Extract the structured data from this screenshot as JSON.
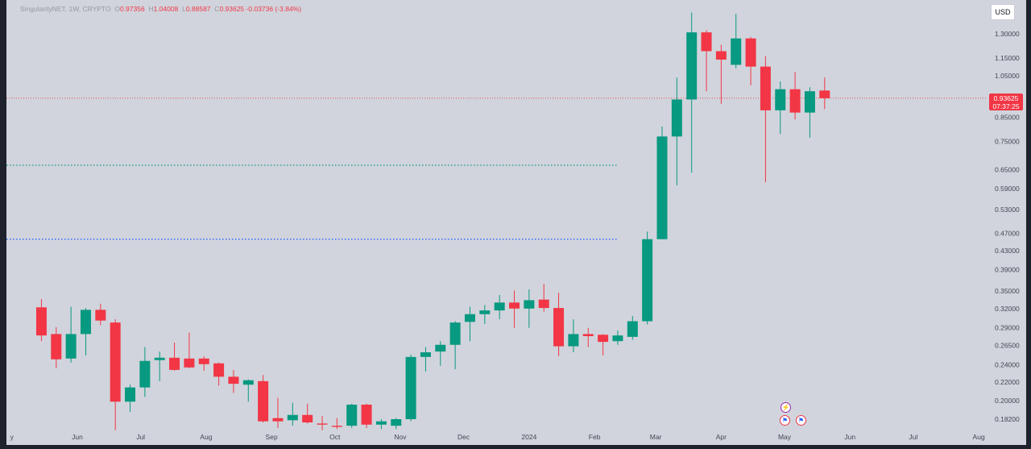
{
  "header": {
    "symbol": "SingularityNET, 1W, CRYPTO",
    "ohlc": [
      {
        "label": "O",
        "value": "0.97356"
      },
      {
        "label": "H",
        "value": "1.04008"
      },
      {
        "label": "L",
        "value": "0.88587"
      },
      {
        "label": "C",
        "value": "0.93625"
      }
    ],
    "change": "-0.03736 (-3.84%)"
  },
  "currency_button": "USD",
  "last_price": {
    "price": "0.93625",
    "countdown": "07:37:25"
  },
  "colors": {
    "up": "#089981",
    "down": "#f23645",
    "background": "#d1d4dc",
    "level_green": "#089981",
    "level_blue": "#2962ff"
  },
  "events": [
    {
      "name": "flash-event",
      "glyph": "⚡"
    },
    {
      "name": "us-flag-event",
      "glyph": "⚑"
    },
    {
      "name": "us-flag-event",
      "glyph": "⚑"
    }
  ],
  "chart_data": {
    "type": "candlestick",
    "y_scale": "log",
    "y_ticks": [
      "1.30000",
      "1.15000",
      "1.05000",
      "0.85000",
      "0.75000",
      "0.65000",
      "0.59000",
      "0.53000",
      "0.47000",
      "0.43000",
      "0.39000",
      "0.35000",
      "0.32000",
      "0.29000",
      "0.26500",
      "0.24000",
      "0.22000",
      "0.20000",
      "0.18200"
    ],
    "x_ticks": [
      {
        "label": "y",
        "date": "2023-05-01"
      },
      {
        "label": "Jun",
        "date": "2023-06-01"
      },
      {
        "label": "Jul",
        "date": "2023-07-01"
      },
      {
        "label": "Aug",
        "date": "2023-08-01"
      },
      {
        "label": "Sep",
        "date": "2023-09-01"
      },
      {
        "label": "Oct",
        "date": "2023-10-01"
      },
      {
        "label": "Nov",
        "date": "2023-11-01"
      },
      {
        "label": "Dec",
        "date": "2023-12-01"
      },
      {
        "label": "2024",
        "date": "2024-01-01"
      },
      {
        "label": "Feb",
        "date": "2024-02-01"
      },
      {
        "label": "Mar",
        "date": "2024-03-01"
      },
      {
        "label": "Apr",
        "date": "2024-04-01"
      },
      {
        "label": "May",
        "date": "2024-05-01"
      },
      {
        "label": "Jun",
        "date": "2024-06-01"
      },
      {
        "label": "Jul",
        "date": "2024-07-01"
      },
      {
        "label": "Aug",
        "date": "2024-08-01"
      }
    ],
    "levels": [
      {
        "price": 0.665,
        "color": "#089981"
      },
      {
        "price": 0.456,
        "color": "#2962ff"
      }
    ],
    "last_price_line": 0.93625,
    "candles": [
      {
        "date": "2023-05-15",
        "o": 0.322,
        "h": 0.336,
        "l": 0.271,
        "c": 0.279
      },
      {
        "date": "2023-05-22",
        "o": 0.281,
        "h": 0.291,
        "l": 0.236,
        "c": 0.247
      },
      {
        "date": "2023-05-29",
        "o": 0.248,
        "h": 0.323,
        "l": 0.243,
        "c": 0.281
      },
      {
        "date": "2023-06-05",
        "o": 0.281,
        "h": 0.321,
        "l": 0.252,
        "c": 0.318
      },
      {
        "date": "2023-06-12",
        "o": 0.318,
        "h": 0.328,
        "l": 0.294,
        "c": 0.301
      },
      {
        "date": "2023-06-19",
        "o": 0.298,
        "h": 0.303,
        "l": 0.172,
        "c": 0.199
      },
      {
        "date": "2023-06-26",
        "o": 0.199,
        "h": 0.217,
        "l": 0.189,
        "c": 0.214
      },
      {
        "date": "2023-07-03",
        "o": 0.214,
        "h": 0.263,
        "l": 0.204,
        "c": 0.245
      },
      {
        "date": "2023-07-10",
        "o": 0.246,
        "h": 0.257,
        "l": 0.221,
        "c": 0.249
      },
      {
        "date": "2023-07-17",
        "o": 0.249,
        "h": 0.269,
        "l": 0.233,
        "c": 0.234
      },
      {
        "date": "2023-07-24",
        "o": 0.248,
        "h": 0.283,
        "l": 0.236,
        "c": 0.237
      },
      {
        "date": "2023-07-31",
        "o": 0.248,
        "h": 0.251,
        "l": 0.233,
        "c": 0.241
      },
      {
        "date": "2023-08-07",
        "o": 0.242,
        "h": 0.243,
        "l": 0.216,
        "c": 0.226
      },
      {
        "date": "2023-08-14",
        "o": 0.226,
        "h": 0.234,
        "l": 0.208,
        "c": 0.218
      },
      {
        "date": "2023-08-21",
        "o": 0.217,
        "h": 0.223,
        "l": 0.199,
        "c": 0.222
      },
      {
        "date": "2023-08-28",
        "o": 0.221,
        "h": 0.228,
        "l": 0.179,
        "c": 0.18
      },
      {
        "date": "2023-09-04",
        "o": 0.183,
        "h": 0.203,
        "l": 0.174,
        "c": 0.18
      },
      {
        "date": "2023-09-11",
        "o": 0.181,
        "h": 0.198,
        "l": 0.176,
        "c": 0.186
      },
      {
        "date": "2023-09-18",
        "o": 0.186,
        "h": 0.197,
        "l": 0.178,
        "c": 0.179
      },
      {
        "date": "2023-09-25",
        "o": 0.178,
        "h": 0.185,
        "l": 0.172,
        "c": 0.177
      },
      {
        "date": "2023-10-02",
        "o": 0.176,
        "h": 0.183,
        "l": 0.173,
        "c": 0.175
      },
      {
        "date": "2023-10-09",
        "o": 0.176,
        "h": 0.197,
        "l": 0.174,
        "c": 0.196
      },
      {
        "date": "2023-10-16",
        "o": 0.196,
        "h": 0.197,
        "l": 0.174,
        "c": 0.177
      },
      {
        "date": "2023-10-23",
        "o": 0.177,
        "h": 0.182,
        "l": 0.173,
        "c": 0.18
      },
      {
        "date": "2023-10-30",
        "o": 0.176,
        "h": 0.183,
        "l": 0.173,
        "c": 0.182
      },
      {
        "date": "2023-11-06",
        "o": 0.182,
        "h": 0.253,
        "l": 0.18,
        "c": 0.25
      },
      {
        "date": "2023-11-13",
        "o": 0.25,
        "h": 0.263,
        "l": 0.232,
        "c": 0.256
      },
      {
        "date": "2023-11-20",
        "o": 0.257,
        "h": 0.271,
        "l": 0.239,
        "c": 0.266
      },
      {
        "date": "2023-11-27",
        "o": 0.266,
        "h": 0.3,
        "l": 0.235,
        "c": 0.298
      },
      {
        "date": "2023-12-04",
        "o": 0.299,
        "h": 0.323,
        "l": 0.271,
        "c": 0.311
      },
      {
        "date": "2023-12-11",
        "o": 0.311,
        "h": 0.326,
        "l": 0.296,
        "c": 0.317
      },
      {
        "date": "2023-12-18",
        "o": 0.317,
        "h": 0.343,
        "l": 0.303,
        "c": 0.33
      },
      {
        "date": "2023-12-25",
        "o": 0.33,
        "h": 0.351,
        "l": 0.29,
        "c": 0.32
      },
      {
        "date": "2024-01-01",
        "o": 0.32,
        "h": 0.353,
        "l": 0.29,
        "c": 0.334
      },
      {
        "date": "2024-01-08",
        "o": 0.335,
        "h": 0.363,
        "l": 0.315,
        "c": 0.321
      },
      {
        "date": "2024-01-15",
        "o": 0.321,
        "h": 0.347,
        "l": 0.251,
        "c": 0.264
      },
      {
        "date": "2024-01-22",
        "o": 0.264,
        "h": 0.303,
        "l": 0.256,
        "c": 0.281
      },
      {
        "date": "2024-01-29",
        "o": 0.281,
        "h": 0.29,
        "l": 0.263,
        "c": 0.278
      },
      {
        "date": "2024-02-05",
        "o": 0.28,
        "h": 0.281,
        "l": 0.252,
        "c": 0.27
      },
      {
        "date": "2024-02-12",
        "o": 0.271,
        "h": 0.286,
        "l": 0.266,
        "c": 0.279
      },
      {
        "date": "2024-02-19",
        "o": 0.277,
        "h": 0.308,
        "l": 0.273,
        "c": 0.3
      },
      {
        "date": "2024-02-26",
        "o": 0.3,
        "h": 0.474,
        "l": 0.295,
        "c": 0.456
      },
      {
        "date": "2024-03-04",
        "o": 0.456,
        "h": 0.81,
        "l": 0.456,
        "c": 0.77
      },
      {
        "date": "2024-03-11",
        "o": 0.77,
        "h": 1.04,
        "l": 0.6,
        "c": 0.93
      },
      {
        "date": "2024-03-18",
        "o": 0.93,
        "h": 1.45,
        "l": 0.64,
        "c": 1.31
      },
      {
        "date": "2024-03-25",
        "o": 1.31,
        "h": 1.325,
        "l": 0.97,
        "c": 1.19
      },
      {
        "date": "2024-04-01",
        "o": 1.19,
        "h": 1.23,
        "l": 0.91,
        "c": 1.14
      },
      {
        "date": "2024-04-08",
        "o": 1.11,
        "h": 1.44,
        "l": 1.09,
        "c": 1.27
      },
      {
        "date": "2024-04-15",
        "o": 1.27,
        "h": 1.28,
        "l": 1.0,
        "c": 1.1
      },
      {
        "date": "2024-04-22",
        "o": 1.1,
        "h": 1.16,
        "l": 0.61,
        "c": 0.88
      },
      {
        "date": "2024-04-29",
        "o": 0.88,
        "h": 1.02,
        "l": 0.78,
        "c": 0.98
      },
      {
        "date": "2024-05-06",
        "o": 0.98,
        "h": 1.07,
        "l": 0.84,
        "c": 0.87
      },
      {
        "date": "2024-05-13",
        "o": 0.87,
        "h": 0.99,
        "l": 0.765,
        "c": 0.97
      },
      {
        "date": "2024-05-20",
        "o": 0.97356,
        "h": 1.04008,
        "l": 0.88587,
        "c": 0.93625
      }
    ]
  }
}
